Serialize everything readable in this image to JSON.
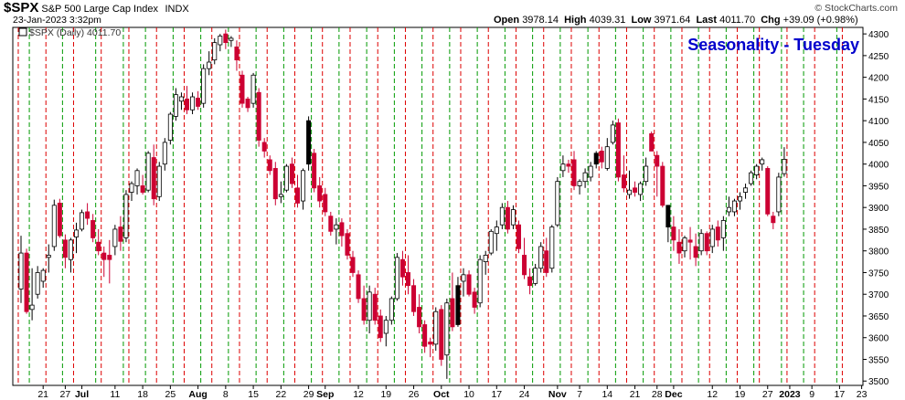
{
  "header": {
    "symbol": "$SPX",
    "description": "S&P 500 Large Cap Index",
    "exchange": "INDX",
    "datetime": "23-Jan-2023 3:32pm",
    "watermark": "© StockCharts.com",
    "open_label": "Open",
    "open": "3978.14",
    "high_label": "High",
    "high": "4039.31",
    "low_label": "Low",
    "low": "3971.64",
    "last_label": "Last",
    "last": "4011.70",
    "chg_label": "Chg",
    "chg": "+39.09 (+0.98%)"
  },
  "chart_data": {
    "type": "candlestick",
    "title": "Seasonality - Tuesday",
    "legend": "$SPX (Daily) 4011.70",
    "ylim": [
      3490,
      4315
    ],
    "yticks": [
      3500,
      3550,
      3600,
      3650,
      3700,
      3750,
      3800,
      3850,
      3900,
      3950,
      4000,
      4050,
      4100,
      4150,
      4200,
      4250,
      4300
    ],
    "xticks": [
      {
        "label": "21",
        "bar": 4
      },
      {
        "label": "27",
        "bar": 8
      },
      {
        "label": "Jul",
        "bar": 11,
        "bold": true
      },
      {
        "label": "11",
        "bar": 17
      },
      {
        "label": "18",
        "bar": 22
      },
      {
        "label": "25",
        "bar": 27
      },
      {
        "label": "Aug",
        "bar": 32,
        "bold": true
      },
      {
        "label": "8",
        "bar": 37
      },
      {
        "label": "15",
        "bar": 42
      },
      {
        "label": "22",
        "bar": 47
      },
      {
        "label": "29",
        "bar": 52
      },
      {
        "label": "Sep",
        "bar": 55,
        "bold": true
      },
      {
        "label": "12",
        "bar": 61
      },
      {
        "label": "19",
        "bar": 66
      },
      {
        "label": "26",
        "bar": 71
      },
      {
        "label": "Oct",
        "bar": 76,
        "bold": true
      },
      {
        "label": "10",
        "bar": 81
      },
      {
        "label": "17",
        "bar": 86
      },
      {
        "label": "24",
        "bar": 91
      },
      {
        "label": "Nov",
        "bar": 97,
        "bold": true
      },
      {
        "label": "7",
        "bar": 101
      },
      {
        "label": "14",
        "bar": 106
      },
      {
        "label": "21",
        "bar": 111
      },
      {
        "label": "28",
        "bar": 115
      },
      {
        "label": "Dec",
        "bar": 118,
        "bold": true
      },
      {
        "label": "12",
        "bar": 125
      },
      {
        "label": "19",
        "bar": 130
      },
      {
        "label": "27",
        "bar": 135
      },
      {
        "label": "2023",
        "bar": 139,
        "bold": true
      },
      {
        "label": "9",
        "bar": 143
      },
      {
        "label": "17",
        "bar": 148
      },
      {
        "label": "23",
        "bar": 152
      }
    ],
    "vlines_red_bars": [
      0,
      5,
      10,
      15,
      20,
      25,
      30,
      35,
      40,
      45,
      50,
      55,
      60,
      65,
      70,
      75,
      80,
      85,
      90,
      95,
      100,
      105,
      110,
      115,
      120,
      125,
      130,
      134,
      139,
      144,
      149
    ],
    "vlines_green_bars": [
      2,
      8,
      14,
      19,
      23,
      28,
      33,
      38,
      43,
      48,
      53,
      58,
      63,
      68,
      73,
      78,
      83,
      88,
      93,
      98,
      103,
      108,
      113,
      118,
      123,
      128,
      133,
      138,
      142,
      148
    ],
    "colors": {
      "up": "#ffffff",
      "down": "#cc0033",
      "black": "#000000",
      "highlight": "#f0d000",
      "red_line": "#dd0000",
      "green_line": "#009900",
      "title": "#0000cc"
    },
    "ohlc": [
      [
        3712,
        3835,
        3680,
        3795
      ],
      [
        3795,
        3805,
        3655,
        3660
      ],
      [
        3665,
        3760,
        3640,
        3675
      ],
      [
        3700,
        3765,
        3690,
        3750
      ],
      [
        3730,
        3760,
        3715,
        3755
      ],
      [
        3785,
        3815,
        3750,
        3790
      ],
      [
        3810,
        3918,
        3800,
        3905
      ],
      [
        3910,
        3920,
        3830,
        3835
      ],
      [
        3825,
        3838,
        3760,
        3785
      ],
      [
        3780,
        3830,
        3750,
        3825
      ],
      [
        3832,
        3865,
        3795,
        3848
      ],
      [
        3850,
        3895,
        3845,
        3888
      ],
      [
        3890,
        3910,
        3860,
        3875
      ],
      [
        3870,
        3885,
        3820,
        3830
      ],
      [
        3820,
        3850,
        3790,
        3800
      ],
      [
        3795,
        3810,
        3740,
        3780
      ],
      [
        3790,
        3825,
        3725,
        3780
      ],
      [
        3810,
        3860,
        3790,
        3850
      ],
      [
        3855,
        3880,
        3800,
        3822
      ],
      [
        3830,
        3940,
        3820,
        3930
      ],
      [
        3935,
        3960,
        3915,
        3955
      ],
      [
        3950,
        3990,
        3930,
        3985
      ],
      [
        3950,
        3975,
        3930,
        3935
      ],
      [
        3940,
        4030,
        3935,
        4025
      ],
      [
        4015,
        4045,
        3905,
        3920
      ],
      [
        3925,
        4005,
        3915,
        3995
      ],
      [
        4000,
        4060,
        3985,
        4050
      ],
      [
        4055,
        4120,
        4045,
        4115
      ],
      [
        4110,
        4175,
        4100,
        4160
      ],
      [
        4145,
        4165,
        4125,
        4155
      ],
      [
        4150,
        4180,
        4115,
        4125
      ],
      [
        4125,
        4165,
        4115,
        4155
      ],
      [
        4152,
        4168,
        4125,
        4133
      ],
      [
        4140,
        4230,
        4130,
        4220
      ],
      [
        4220,
        4260,
        4205,
        4235
      ],
      [
        4240,
        4290,
        4230,
        4280
      ],
      [
        4275,
        4300,
        4260,
        4295
      ],
      [
        4300,
        4310,
        4265,
        4280
      ],
      [
        4285,
        4295,
        4270,
        4290
      ],
      [
        4270,
        4285,
        4215,
        4240
      ],
      [
        4205,
        4215,
        4130,
        4140
      ],
      [
        4150,
        4155,
        4120,
        4130
      ],
      [
        4140,
        4210,
        4130,
        4205
      ],
      [
        4165,
        4175,
        4040,
        4055
      ],
      [
        4050,
        4060,
        4015,
        4030
      ],
      [
        4010,
        4020,
        3975,
        3985
      ],
      [
        3990,
        4005,
        3905,
        3920
      ],
      [
        3925,
        3960,
        3910,
        3930
      ],
      [
        3940,
        4000,
        3935,
        3995
      ],
      [
        4000,
        4015,
        3945,
        3955
      ],
      [
        3945,
        3975,
        3900,
        3910
      ],
      [
        3915,
        3990,
        3895,
        3985
      ],
      [
        4000,
        4110,
        3985,
        4100
      ],
      [
        4025,
        4035,
        3935,
        3945
      ],
      [
        3950,
        3970,
        3900,
        3915
      ],
      [
        3930,
        3945,
        3880,
        3890
      ],
      [
        3880,
        3890,
        3835,
        3845
      ],
      [
        3850,
        3875,
        3815,
        3860
      ],
      [
        3865,
        3875,
        3810,
        3835
      ],
      [
        3840,
        3850,
        3780,
        3790
      ],
      [
        3785,
        3800,
        3740,
        3750
      ],
      [
        3745,
        3755,
        3680,
        3690
      ],
      [
        3690,
        3720,
        3630,
        3640
      ],
      [
        3640,
        3720,
        3610,
        3705
      ],
      [
        3700,
        3715,
        3630,
        3640
      ],
      [
        3650,
        3665,
        3590,
        3600
      ],
      [
        3610,
        3650,
        3580,
        3640
      ],
      [
        3640,
        3695,
        3630,
        3690
      ],
      [
        3690,
        3795,
        3685,
        3785
      ],
      [
        3780,
        3800,
        3720,
        3740
      ],
      [
        3750,
        3790,
        3700,
        3720
      ],
      [
        3720,
        3735,
        3650,
        3660
      ],
      [
        3670,
        3700,
        3610,
        3625
      ],
      [
        3630,
        3640,
        3565,
        3580
      ],
      [
        3590,
        3600,
        3555,
        3585
      ],
      [
        3585,
        3670,
        3570,
        3660
      ],
      [
        3665,
        3675,
        3535,
        3550
      ],
      [
        3560,
        3690,
        3505,
        3680
      ],
      [
        3690,
        3750,
        3615,
        3625
      ],
      [
        3630,
        3740,
        3625,
        3720
      ],
      [
        3730,
        3760,
        3695,
        3745
      ],
      [
        3745,
        3755,
        3695,
        3700
      ],
      [
        3705,
        3715,
        3655,
        3670
      ],
      [
        3680,
        3790,
        3670,
        3780
      ],
      [
        3775,
        3800,
        3745,
        3790
      ],
      [
        3795,
        3850,
        3790,
        3845
      ],
      [
        3840,
        3870,
        3800,
        3855
      ],
      [
        3860,
        3910,
        3850,
        3900
      ],
      [
        3900,
        3915,
        3840,
        3850
      ],
      [
        3860,
        3905,
        3850,
        3895
      ],
      [
        3860,
        3870,
        3795,
        3805
      ],
      [
        3790,
        3830,
        3735,
        3745
      ],
      [
        3740,
        3760,
        3700,
        3720
      ],
      [
        3725,
        3770,
        3720,
        3760
      ],
      [
        3760,
        3820,
        3750,
        3810
      ],
      [
        3800,
        3830,
        3740,
        3750
      ],
      [
        3760,
        3860,
        3750,
        3855
      ],
      [
        3860,
        3970,
        3855,
        3960
      ],
      [
        3985,
        4020,
        3970,
        4000
      ],
      [
        4000,
        4010,
        3980,
        3995
      ],
      [
        4010,
        4030,
        3940,
        3950
      ],
      [
        3950,
        3965,
        3930,
        3960
      ],
      [
        3960,
        3990,
        3945,
        3980
      ],
      [
        3970,
        4005,
        3960,
        3995
      ],
      [
        4000,
        4030,
        3990,
        4025
      ],
      [
        4030,
        4040,
        3990,
        4005
      ],
      [
        3990,
        4060,
        3985,
        4040
      ],
      [
        4050,
        4100,
        4045,
        4090
      ],
      [
        4095,
        4105,
        3960,
        3970
      ],
      [
        3975,
        4020,
        3935,
        3945
      ],
      [
        3930,
        3985,
        3920,
        3940
      ],
      [
        3945,
        3960,
        3925,
        3935
      ],
      [
        3930,
        3960,
        3915,
        3955
      ],
      [
        3960,
        4015,
        3950,
        3995
      ],
      [
        4070,
        4075,
        4030,
        4030
      ],
      [
        4020,
        4030,
        3925,
        3995
      ],
      [
        3995,
        4005,
        3900,
        3905
      ],
      [
        3905,
        3905,
        3820,
        3855
      ],
      [
        3855,
        3880,
        3800,
        3825
      ],
      [
        3820,
        3850,
        3770,
        3795
      ],
      [
        3800,
        3835,
        3785,
        3830
      ],
      [
        3825,
        3855,
        3780,
        3820
      ],
      [
        3810,
        3840,
        3765,
        3785
      ],
      [
        3800,
        3850,
        3790,
        3840
      ],
      [
        3840,
        3845,
        3790,
        3800
      ],
      [
        3810,
        3860,
        3795,
        3850
      ],
      [
        3855,
        3870,
        3810,
        3825
      ],
      [
        3830,
        3880,
        3800,
        3870
      ],
      [
        3890,
        3925,
        3880,
        3900
      ],
      [
        3890,
        3920,
        3880,
        3915
      ],
      [
        3915,
        3935,
        3895,
        3925
      ],
      [
        3935,
        3955,
        3920,
        3945
      ],
      [
        3955,
        3985,
        3950,
        3980
      ],
      [
        3975,
        4000,
        3965,
        3995
      ],
      [
        4000,
        4015,
        3985,
        4010
      ],
      [
        3990,
        3995,
        3880,
        3885
      ],
      [
        3880,
        3890,
        3850,
        3865
      ],
      [
        3890,
        3980,
        3880,
        3970
      ],
      [
        3978,
        4039,
        3971,
        4011
      ]
    ],
    "colorOverrides": {
      "52": "black",
      "79": "black",
      "104": "black",
      "117": "black",
      "147": "highlight"
    }
  }
}
